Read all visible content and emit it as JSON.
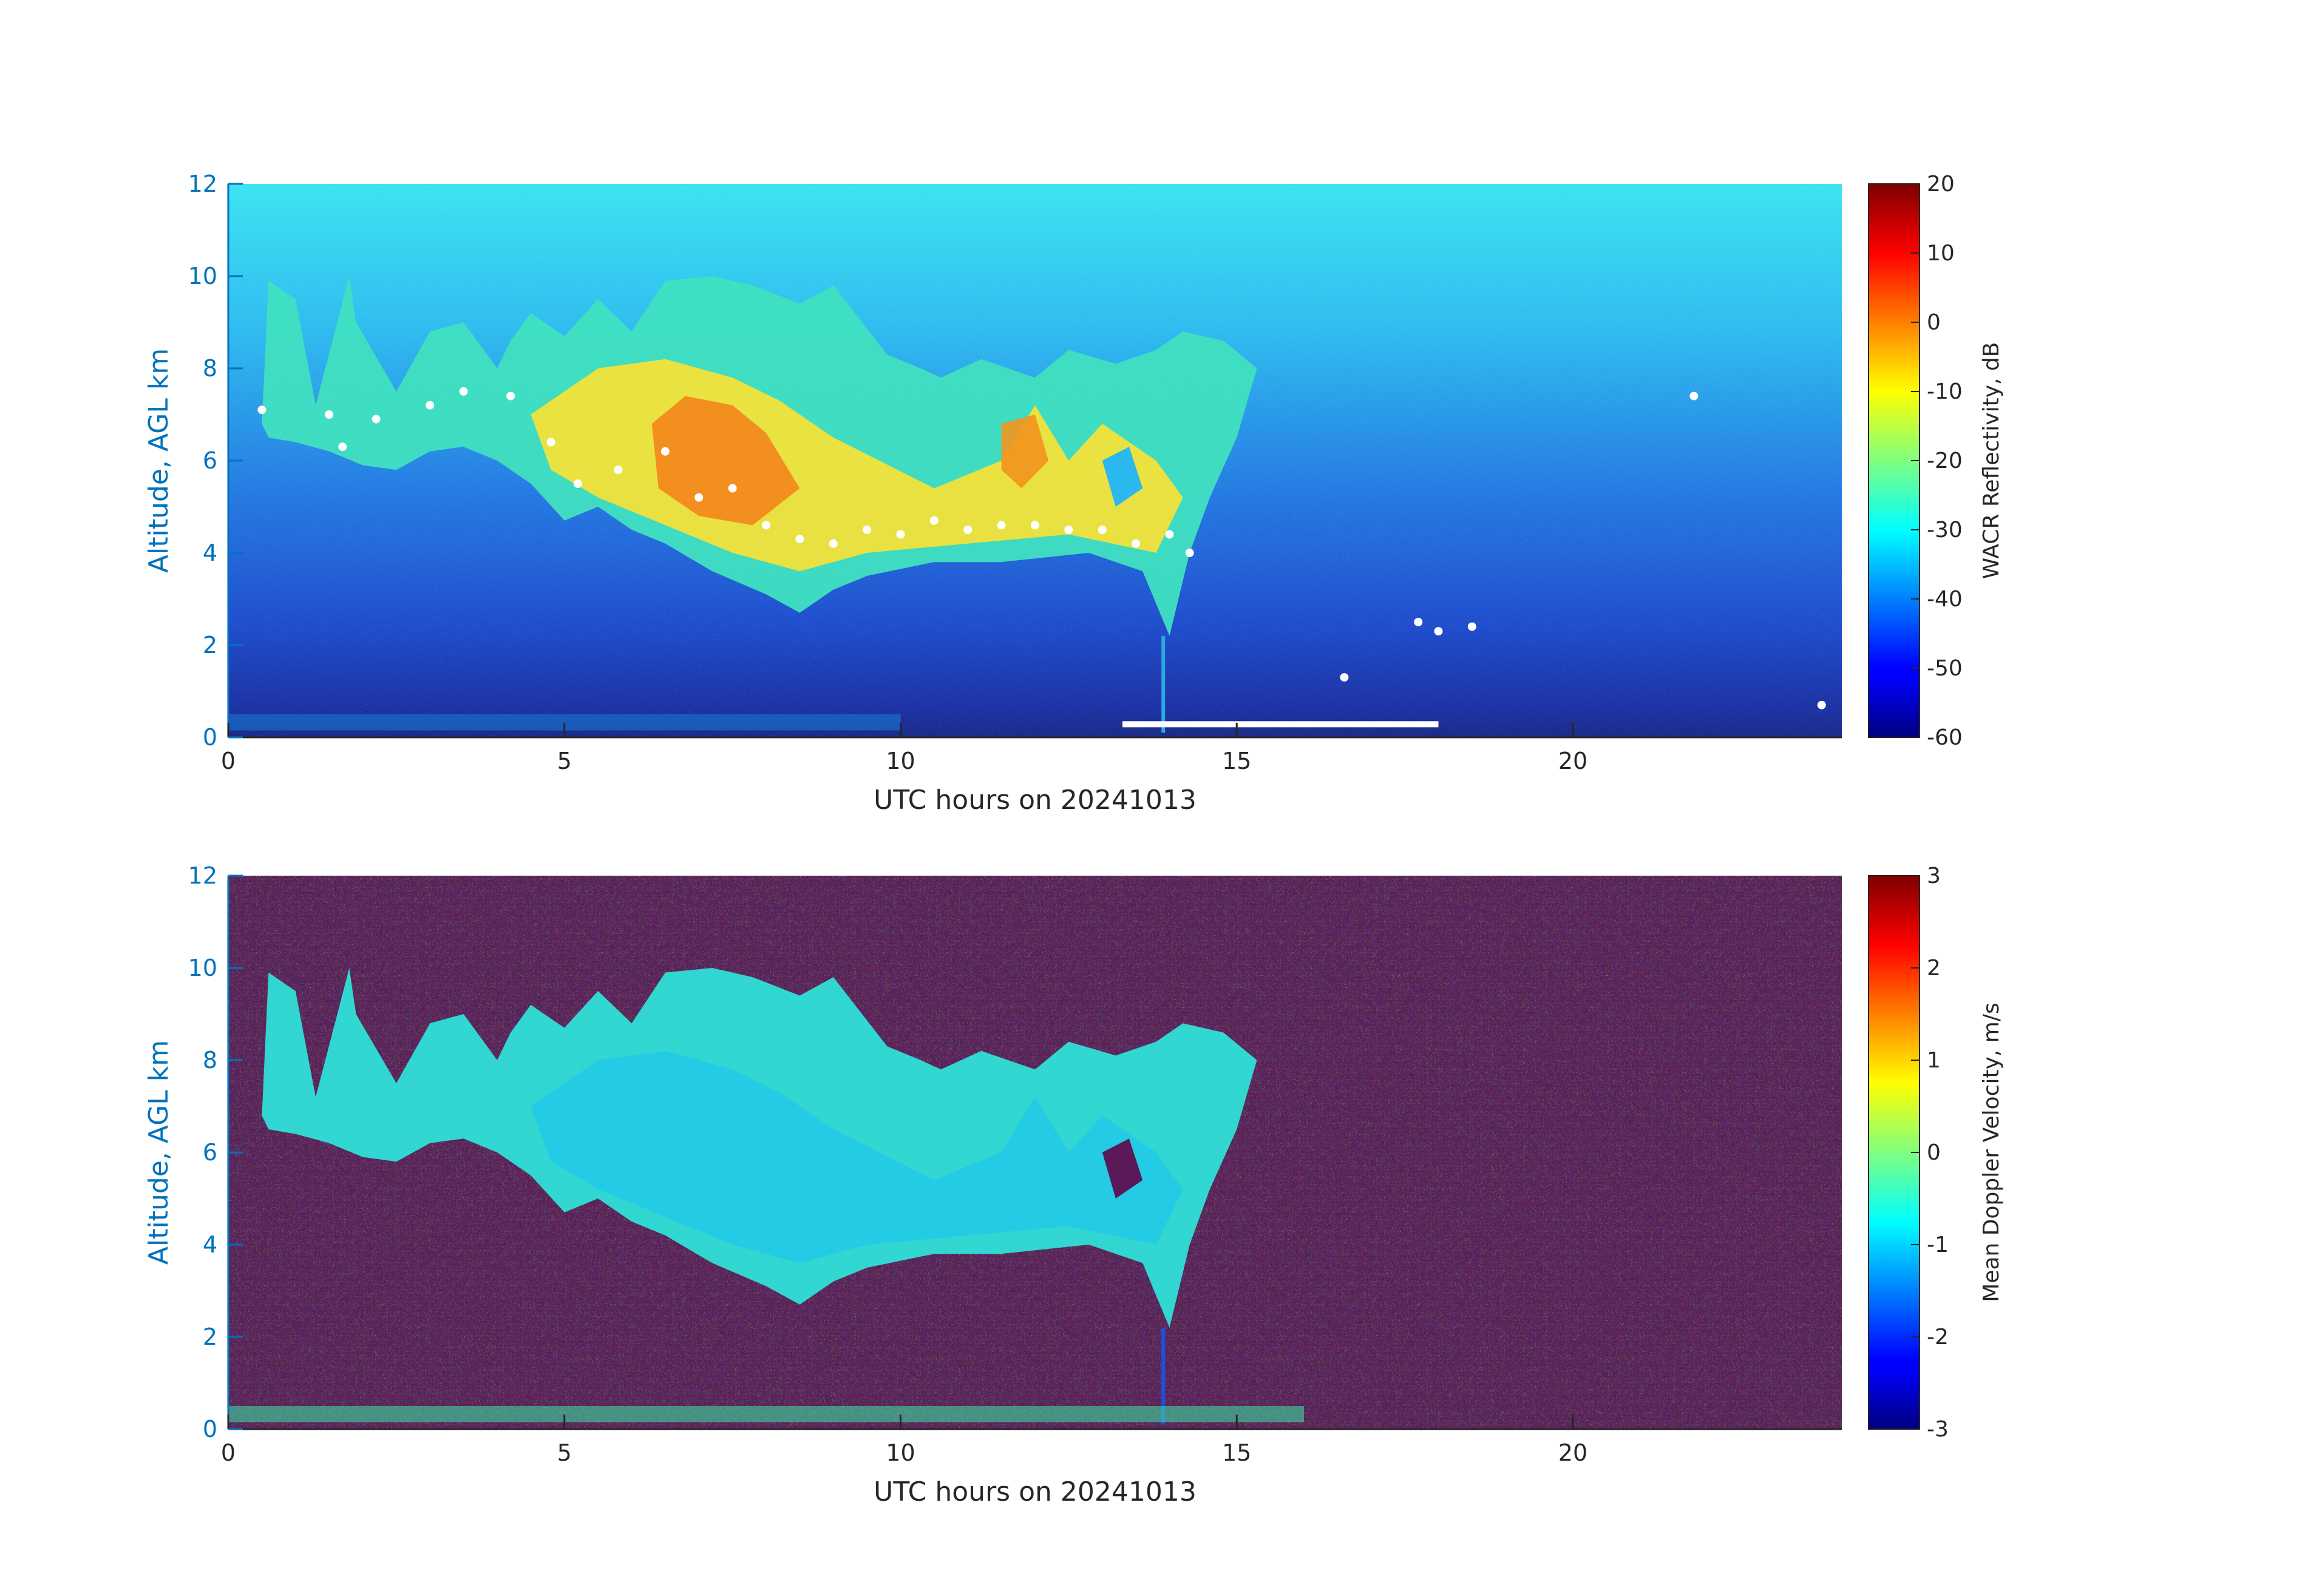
{
  "chart_data": [
    {
      "type": "heatmap",
      "title": "",
      "xlabel": "UTC hours on 20241013",
      "ylabel": "Altitude, AGL km",
      "xlim": [
        0,
        24
      ],
      "ylim": [
        0,
        12
      ],
      "x_ticks": [
        "0",
        "5",
        "10",
        "15",
        "20"
      ],
      "y_ticks": [
        "0",
        "2",
        "4",
        "6",
        "8",
        "10",
        "12"
      ],
      "colorbar": {
        "label": "WACR Reflectivity, dB",
        "range": [
          -60,
          20
        ],
        "ticks": [
          "20",
          "10",
          "0",
          "-10",
          "-20",
          "-30",
          "-40",
          "-50",
          "-60"
        ],
        "colormap": "jet"
      },
      "cloud_layers": [
        {
          "t": [
            0.5,
            24
          ],
          "note": ""
        },
        {
          "t_start": 0.5,
          "t_end": 15.3,
          "base_km": [
            6.5,
            6.0,
            5.0,
            4.0,
            3.0,
            3.5,
            4.0,
            4.0,
            3.5,
            2.0
          ],
          "top_km": [
            9.5,
            8.5,
            9.0,
            9.0,
            9.5,
            9.0,
            8.0,
            8.0,
            8.5,
            8.0
          ]
        }
      ],
      "colors": {
        "background": "#0a3cd2",
        "cloud_core": "#ff7a00",
        "noise_top": "#1ee6f5"
      }
    },
    {
      "type": "heatmap",
      "title": "",
      "xlabel": "UTC hours on 20241013",
      "ylabel": "Altitude, AGL km",
      "xlim": [
        0,
        24
      ],
      "ylim": [
        0,
        12
      ],
      "x_ticks": [
        "0",
        "5",
        "10",
        "15",
        "20"
      ],
      "y_ticks": [
        "0",
        "2",
        "4",
        "6",
        "8",
        "10",
        "12"
      ],
      "colorbar": {
        "label": "Mean Doppler Velocity, m/s",
        "range": [
          -3,
          3
        ],
        "ticks": [
          "3",
          "2",
          "1",
          "0",
          "-1",
          "-2",
          "-3"
        ],
        "colormap": "jet"
      },
      "colors": {
        "background": "noise",
        "cloud_core": "#1ee6d2"
      }
    }
  ]
}
